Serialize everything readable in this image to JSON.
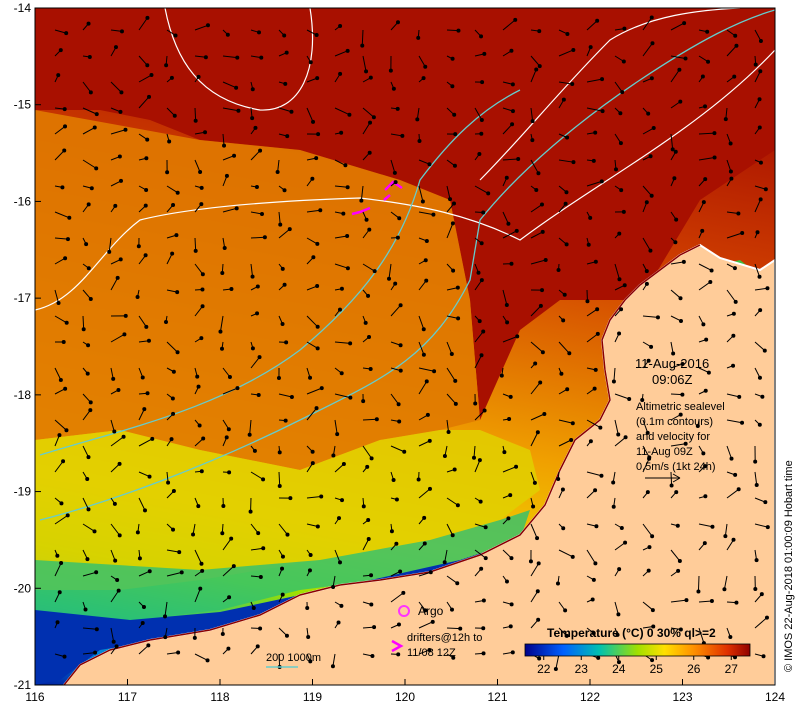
{
  "map": {
    "lon_range": [
      116,
      124
    ],
    "lat_range": [
      -21,
      -14
    ],
    "x_ticks": [
      "116",
      "117",
      "118",
      "119",
      "120",
      "121",
      "122",
      "123",
      "124"
    ],
    "y_ticks": [
      "-14",
      "-15",
      "-16",
      "-17",
      "-18",
      "-19",
      "-20",
      "-21"
    ]
  },
  "annotations": {
    "date": "11-Aug-2016",
    "time": "09:06Z",
    "alt_line1": "Altimetric sealevel",
    "alt_line2": "(0.1m contours)",
    "alt_line3": "and velocity for",
    "alt_line4": "11-Aug 09Z",
    "alt_line5": "0.5m/s (1kt 24h)",
    "argo_label": "Argo",
    "drifters_line1": "drifters@12h to",
    "drifters_line2": "11/08 12Z",
    "bathy_label": "200  1000m",
    "credit": "© IMOS 22-Aug-2018 01:00:09 Hobart time"
  },
  "colorbar": {
    "title": "Temperature (°C) 0 30% ql>=2",
    "ticks": [
      "22",
      "23",
      "24",
      "25",
      "26",
      "27"
    ],
    "range": [
      21.5,
      27.5
    ]
  },
  "colors": {
    "land": "#ffcc99",
    "ocean_hot": "#a81000",
    "argo": "#ff33ff",
    "drifter": "#ff00ff",
    "bathy_200": "#66cccc",
    "contour": "#ffffff"
  }
}
